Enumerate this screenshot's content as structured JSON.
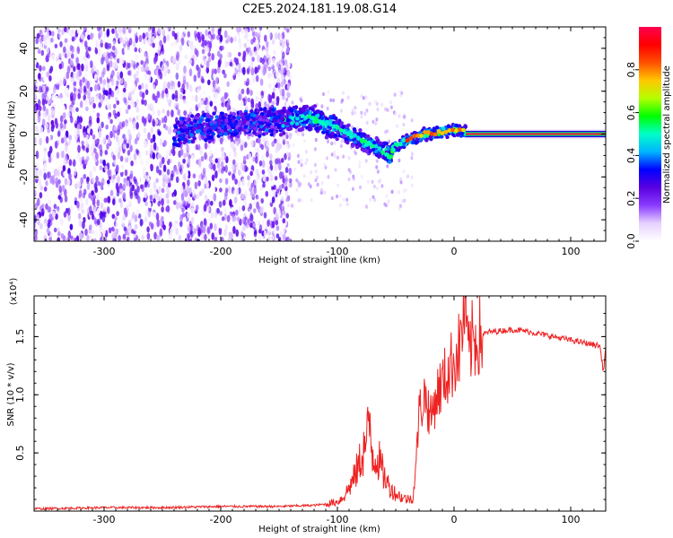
{
  "figure": {
    "title": "C2E5.2024.181.19.08.G14"
  },
  "chart_data": [
    {
      "type": "heatmap",
      "title": "C2E5.2024.181.19.08.G14",
      "xlabel": "Height of straight line (km)",
      "ylabel": "Frequency (Hz)",
      "xlim": [
        -360,
        130
      ],
      "ylim": [
        -50,
        50
      ],
      "x_ticks": [
        -300,
        -200,
        -100,
        0,
        100
      ],
      "y_ticks": [
        -40,
        -20,
        0,
        20,
        40
      ],
      "grid": false,
      "colorbar": {
        "label": "Normalized spectral amplitude",
        "range": [
          0.0,
          1.0
        ],
        "ticks": [
          0.0,
          0.2,
          0.4,
          0.6,
          0.8
        ],
        "colormap": [
          "#ffffff",
          "#e6d2ff",
          "#8a3cff",
          "#5a00e0",
          "#0000ff",
          "#00b4ff",
          "#00ffc8",
          "#00ff00",
          "#b4ff00",
          "#ffc800",
          "#ff5000",
          "#ff0000",
          "#ff0050"
        ]
      },
      "ridge_track": {
        "x": [
          -240,
          -230,
          -200,
          -150,
          -130,
          -120,
          -110,
          -100,
          -90,
          -80,
          -70,
          -60,
          -55,
          -50,
          -45,
          -40,
          -35,
          -30,
          -25,
          -20,
          -10,
          0,
          10
        ],
        "y": [
          0,
          2,
          4,
          6,
          8,
          7,
          5,
          3,
          0,
          -3,
          -5,
          -8,
          -10,
          -6,
          -4,
          -3,
          -2,
          -1,
          0,
          0,
          1,
          2,
          1
        ]
      },
      "constant_band": {
        "x_start": 10,
        "x_end": 130,
        "y": 0,
        "value": 1.0
      },
      "noise_region": {
        "x_start": -360,
        "x_end": -140
      }
    },
    {
      "type": "line",
      "xlabel": "Height of straight line (km)",
      "ylabel": "SNR (10 * v/v)",
      "y_multiplier": "(x10⁴)",
      "xlim": [
        -360,
        130
      ],
      "ylim": [
        0,
        1.85
      ],
      "x_ticks": [
        -300,
        -200,
        -100,
        0,
        100
      ],
      "y_ticks": [
        0.5,
        1.0,
        1.5
      ],
      "grid": false,
      "series": [
        {
          "color": "#ee2222",
          "x": [
            -360,
            -300,
            -250,
            -200,
            -150,
            -120,
            -110,
            -100,
            -95,
            -90,
            -85,
            -80,
            -75,
            -72,
            -70,
            -65,
            -60,
            -55,
            -50,
            -45,
            -40,
            -35,
            -32,
            -30,
            -28,
            -25,
            -20,
            -15,
            -10,
            -5,
            0,
            5,
            10,
            12,
            15,
            20,
            25,
            30,
            40,
            50,
            60,
            70,
            80,
            90,
            100,
            110,
            120,
            125,
            128,
            130
          ],
          "y": [
            0.02,
            0.03,
            0.03,
            0.04,
            0.04,
            0.05,
            0.06,
            0.08,
            0.12,
            0.2,
            0.3,
            0.45,
            0.6,
            0.75,
            0.5,
            0.45,
            0.3,
            0.2,
            0.15,
            0.12,
            0.1,
            0.12,
            0.5,
            0.85,
            0.9,
            1.0,
            0.8,
            1.0,
            1.1,
            1.2,
            1.3,
            1.4,
            1.85,
            1.3,
            1.45,
            1.5,
            1.52,
            1.54,
            1.55,
            1.56,
            1.55,
            1.53,
            1.51,
            1.49,
            1.47,
            1.45,
            1.43,
            1.42,
            1.2,
            1.41
          ]
        }
      ]
    }
  ]
}
